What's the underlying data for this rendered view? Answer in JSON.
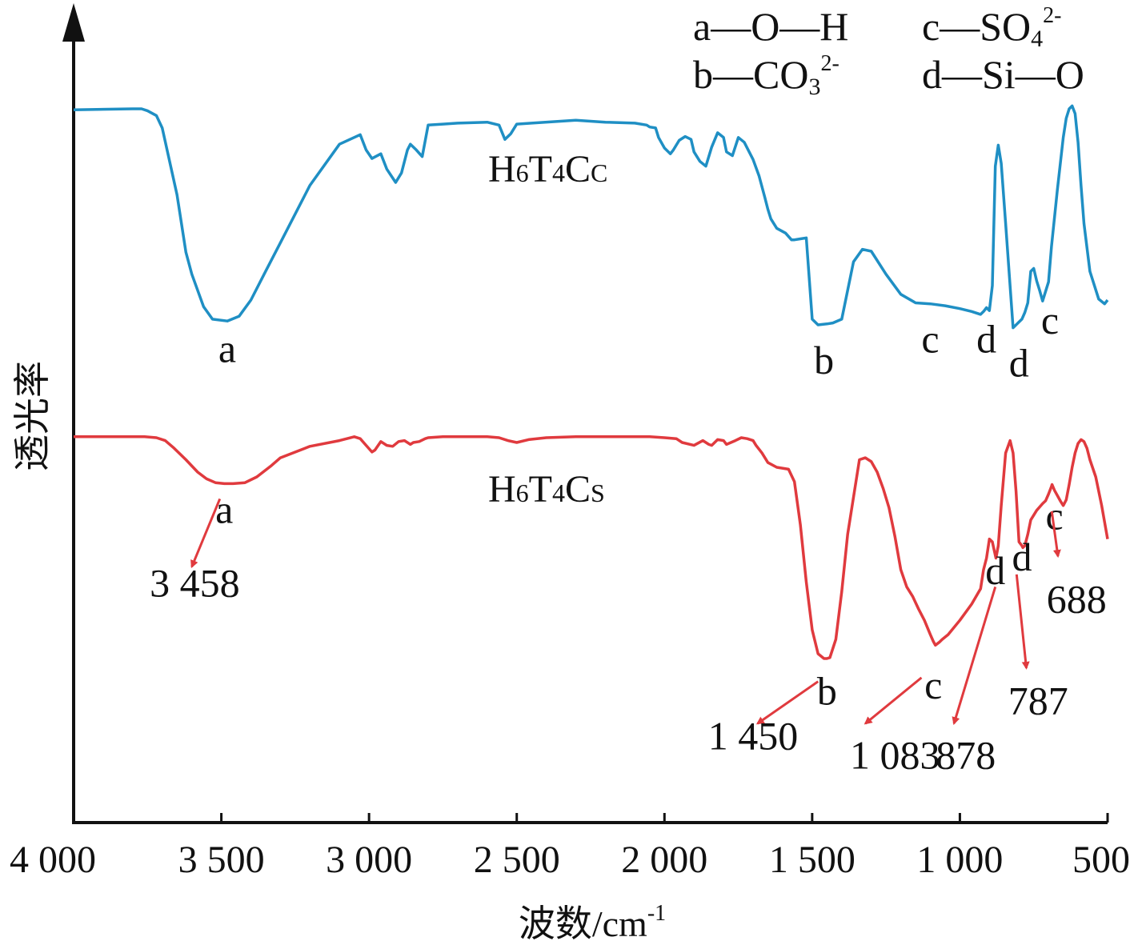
{
  "chart_data": {
    "type": "line",
    "title": "",
    "xlabel": "波数/cm",
    "xlabel_sup": "-1",
    "ylabel": "透光率",
    "xlim": [
      4000,
      500
    ],
    "x_ticks": [
      {
        "value": 4000,
        "label": "4 000"
      },
      {
        "value": 3500,
        "label": "3 500"
      },
      {
        "value": 3000,
        "label": "3 000"
      },
      {
        "value": 2500,
        "label": "2 500"
      },
      {
        "value": 2000,
        "label": "2 000"
      },
      {
        "value": 1500,
        "label": "1 500"
      },
      {
        "value": 1000,
        "label": "1 000"
      },
      {
        "value": 500,
        "label": "500"
      }
    ],
    "legend": [
      {
        "key": "a",
        "main": "O—H",
        "sub": "",
        "sup": ""
      },
      {
        "key": "b",
        "main": "CO",
        "sub": "3",
        "sup": "2-"
      },
      {
        "key": "c",
        "main": "SO",
        "sub": "4",
        "sup": "2-"
      },
      {
        "key": "d",
        "main": "Si—O",
        "sub": "",
        "sup": ""
      }
    ],
    "series": [
      {
        "base": "H",
        "sub1": "6",
        "mid": "T",
        "sub2": "4",
        "end": "C",
        "sub3": "C",
        "color": "#1f8fc4",
        "x": [
          4000,
          3800,
          3770,
          3750,
          3720,
          3700,
          3650,
          3620,
          3600,
          3560,
          3530,
          3480,
          3440,
          3400,
          3350,
          3300,
          3200,
          3100,
          3030,
          3010,
          2990,
          2960,
          2940,
          2910,
          2890,
          2870,
          2860,
          2840,
          2820,
          2800,
          2750,
          2700,
          2600,
          2560,
          2540,
          2520,
          2500,
          2450,
          2300,
          2200,
          2100,
          2060,
          2050,
          2030,
          2020,
          2000,
          1980,
          1970,
          1950,
          1930,
          1910,
          1900,
          1880,
          1860,
          1840,
          1820,
          1800,
          1790,
          1770,
          1750,
          1730,
          1700,
          1680,
          1660,
          1650,
          1640,
          1620,
          1590,
          1570,
          1560,
          1540,
          1520,
          1500,
          1480,
          1450,
          1430,
          1400,
          1360,
          1330,
          1300,
          1250,
          1200,
          1150,
          1100,
          1050,
          1000,
          960,
          930,
          920,
          910,
          900,
          890,
          880,
          870,
          860,
          845,
          820,
          800,
          790,
          780,
          770,
          760,
          750,
          740,
          730,
          720,
          700,
          690,
          670,
          650,
          640,
          630,
          620,
          610,
          600,
          590,
          580,
          560,
          530,
          510,
          500
        ],
        "y": [
          50.4,
          50.5,
          50.5,
          50.3,
          49.8,
          48.5,
          41.5,
          35.5,
          33.2,
          29.8,
          28.5,
          28.3,
          28.8,
          30.5,
          33.5,
          36.5,
          42.5,
          46.8,
          47.8,
          46.2,
          45.3,
          45.8,
          44.2,
          42.8,
          43.8,
          46.2,
          46.8,
          46.2,
          45.5,
          48.8,
          48.9,
          49.0,
          49.1,
          48.8,
          47.3,
          47.9,
          48.9,
          49.0,
          49.3,
          49.1,
          49.0,
          48.8,
          48.6,
          48.5,
          47.5,
          46.4,
          45.8,
          46.2,
          47.2,
          47.6,
          47.3,
          46.0,
          45.0,
          44.5,
          46.5,
          48.0,
          47.5,
          46.0,
          45.6,
          47.5,
          47.0,
          45.2,
          43.5,
          41.2,
          40.0,
          39.0,
          38.0,
          37.5,
          36.8,
          36.8,
          36.9,
          37.0,
          28.5,
          27.9,
          28.0,
          28.1,
          28.5,
          34.5,
          35.8,
          35.6,
          33.2,
          31.1,
          30.2,
          30.1,
          29.9,
          29.6,
          29.3,
          29.0,
          29.3,
          29.7,
          29.4,
          32.0,
          44.5,
          46.7,
          44.8,
          38.5,
          27.6,
          28.2,
          28.5,
          29.2,
          30.2,
          33.5,
          33.8,
          32.5,
          31.5,
          30.4,
          32.4,
          36.1,
          42.0,
          47.5,
          49.5,
          50.5,
          50.8,
          50.0,
          47.0,
          42.5,
          38.5,
          33.5,
          30.6,
          30.1,
          30.5
        ]
      },
      {
        "base": "H",
        "sub1": "6",
        "mid": "T",
        "sub2": "4",
        "end": "C",
        "sub3": "S",
        "color": "#e03a3e",
        "x": [
          4000,
          3800,
          3760,
          3720,
          3690,
          3660,
          3620,
          3580,
          3550,
          3520,
          3490,
          3460,
          3420,
          3380,
          3330,
          3300,
          3200,
          3100,
          3050,
          3030,
          3010,
          2990,
          2980,
          2960,
          2940,
          2920,
          2900,
          2880,
          2860,
          2850,
          2830,
          2810,
          2800,
          2750,
          2700,
          2600,
          2560,
          2530,
          2500,
          2460,
          2400,
          2300,
          2200,
          2100,
          2050,
          2000,
          1960,
          1940,
          1900,
          1870,
          1850,
          1840,
          1820,
          1800,
          1790,
          1760,
          1740,
          1720,
          1700,
          1690,
          1670,
          1650,
          1620,
          1580,
          1560,
          1540,
          1520,
          1500,
          1480,
          1460,
          1450,
          1440,
          1420,
          1400,
          1380,
          1340,
          1320,
          1300,
          1280,
          1260,
          1240,
          1220,
          1200,
          1180,
          1160,
          1140,
          1120,
          1100,
          1090,
          1083,
          1070,
          1060,
          1040,
          1000,
          960,
          930,
          920,
          910,
          900,
          890,
          880,
          878,
          870,
          860,
          845,
          830,
          820,
          810,
          800,
          790,
          787,
          780,
          770,
          760,
          740,
          720,
          710,
          700,
          690,
          688,
          680,
          660,
          650,
          640,
          630,
          620,
          610,
          600,
          590,
          580,
          570,
          560,
          540,
          520,
          500
        ],
        "y": [
          16.2,
          16.2,
          16.2,
          16.1,
          15.8,
          15.0,
          13.8,
          12.5,
          11.8,
          11.4,
          11.3,
          11.3,
          11.4,
          12.0,
          13.2,
          14.0,
          15.2,
          15.8,
          16.2,
          16.0,
          15.3,
          14.6,
          14.8,
          15.7,
          15.3,
          15.2,
          15.7,
          15.8,
          15.4,
          15.6,
          15.7,
          16.0,
          16.1,
          16.2,
          16.2,
          16.2,
          16.1,
          15.8,
          15.6,
          15.9,
          16.1,
          16.2,
          16.2,
          16.2,
          16.2,
          16.1,
          16.0,
          15.6,
          15.3,
          15.8,
          15.4,
          15.3,
          15.9,
          15.8,
          15.4,
          15.8,
          16.1,
          16.0,
          15.8,
          15.3,
          14.5,
          13.5,
          13.0,
          12.8,
          11.5,
          7.0,
          1.0,
          -4.0,
          -6.5,
          -7.0,
          -7.0,
          -6.9,
          -5.0,
          0,
          6.0,
          13.8,
          14.0,
          13.6,
          12.5,
          10.8,
          8.8,
          5.8,
          2.3,
          0.5,
          -0.5,
          -1.8,
          -3.0,
          -4.5,
          -5.2,
          -5.6,
          -5.3,
          -5.0,
          -4.5,
          -3.0,
          -1.3,
          0.3,
          2.3,
          3.5,
          5.5,
          5.2,
          3.8,
          3.5,
          4.8,
          9.0,
          14.5,
          15.8,
          14.5,
          10.5,
          5.2,
          4.8,
          4.6,
          4.8,
          6.0,
          7.5,
          8.5,
          9.2,
          9.5,
          10.2,
          11.0,
          11.2,
          10.6,
          9.5,
          9.0,
          9.6,
          11.2,
          13.0,
          14.5,
          15.5,
          15.9,
          15.7,
          15.0,
          13.8,
          12.0,
          9.0,
          5.5
        ]
      }
    ],
    "peak_labels": [
      {
        "series": 0,
        "text": "a",
        "x": 3480,
        "y": 24.0
      },
      {
        "series": 0,
        "text": "b",
        "x": 1460,
        "y": 22.8
      },
      {
        "series": 0,
        "text": "c",
        "x": 1100,
        "y": 25.0
      },
      {
        "series": 0,
        "text": "d",
        "x": 910,
        "y": 25.0
      },
      {
        "series": 0,
        "text": "d",
        "x": 800,
        "y": 22.5
      },
      {
        "series": 0,
        "text": "c",
        "x": 695,
        "y": 27.0
      },
      {
        "series": 1,
        "text": "a",
        "x": 3490,
        "y": 7.2
      },
      {
        "series": 1,
        "text": "b",
        "x": 1450,
        "y": -11.8
      },
      {
        "series": 1,
        "text": "c",
        "x": 1090,
        "y": -11.2
      },
      {
        "series": 1,
        "text": "d",
        "x": 880,
        "y": 0.8
      },
      {
        "series": 1,
        "text": "d",
        "x": 790,
        "y": 2.2
      },
      {
        "series": 1,
        "text": "c",
        "x": 680,
        "y": 6.5
      }
    ],
    "annotations": [
      {
        "text": "3 458",
        "x": 3590,
        "y": -0.5,
        "arrow_from": [
          3505,
          9.7
        ],
        "arrow_to": [
          3600,
          2.6
        ]
      },
      {
        "text": "1 450",
        "x": 1700,
        "y": -16.5,
        "arrow_from": [
          1480,
          -9.4
        ],
        "arrow_to": [
          1685,
          -13.8
        ]
      },
      {
        "text": "1 083",
        "x": 1220,
        "y": -18.5,
        "arrow_from": [
          1130,
          -9.0
        ],
        "arrow_to": [
          1320,
          -13.8
        ]
      },
      {
        "text": "878",
        "x": 980,
        "y": -18.5,
        "arrow_from": [
          880,
          0.5
        ],
        "arrow_to": [
          1020,
          -13.8
        ]
      },
      {
        "text": "787",
        "x": 735,
        "y": -12.8,
        "arrow_from": [
          808,
          1.8
        ],
        "arrow_to": [
          775,
          -8.0
        ]
      },
      {
        "text": "688",
        "x": 605,
        "y": -2.2,
        "arrow_from": [
          689,
          8.4
        ],
        "arrow_to": [
          668,
          3.7
        ]
      }
    ]
  }
}
